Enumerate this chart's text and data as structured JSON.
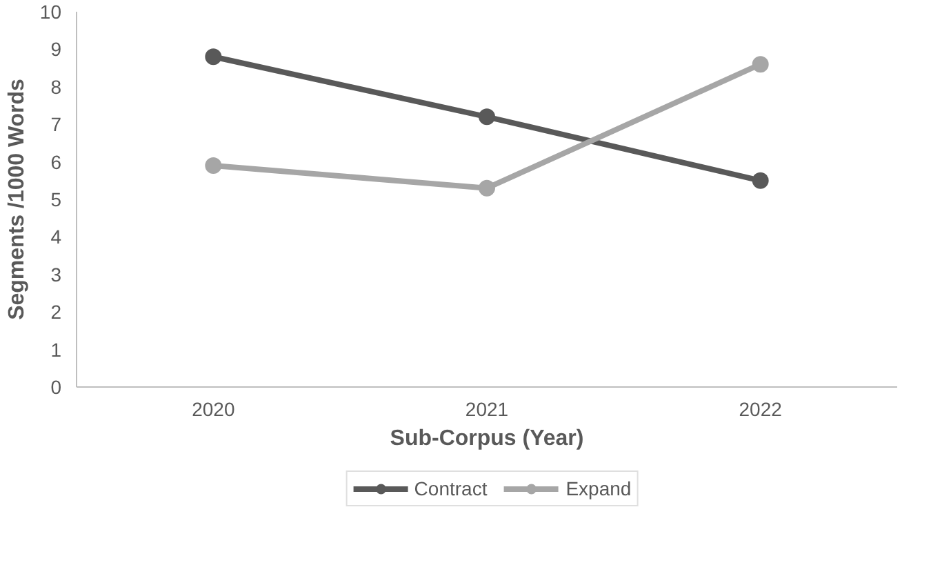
{
  "chart_data": {
    "type": "line",
    "xlabel": "Sub-Corpus (Year)",
    "ylabel": "Segments /1000 Words",
    "categories": [
      "2020",
      "2021",
      "2022"
    ],
    "series": [
      {
        "name": "Contract",
        "color": "#595959",
        "values": [
          8.8,
          7.2,
          5.5
        ]
      },
      {
        "name": "Expand",
        "color": "#a6a6a6",
        "values": [
          5.9,
          5.3,
          8.6
        ]
      }
    ],
    "ylim": [
      0,
      10
    ],
    "yticks": [
      0,
      1,
      2,
      3,
      4,
      5,
      6,
      7,
      8,
      9,
      10
    ],
    "grid": false,
    "legend": "bottom",
    "marker": "circle",
    "line_style": "solid"
  }
}
